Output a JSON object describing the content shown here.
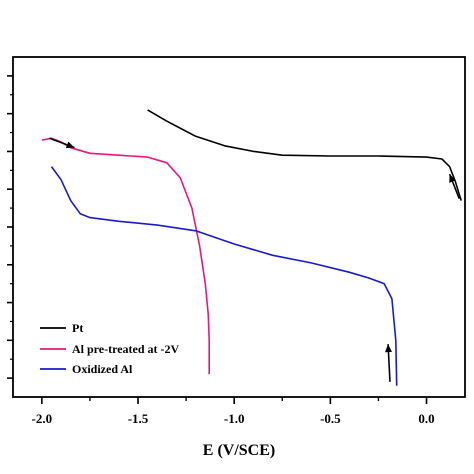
{
  "chart_data": {
    "type": "line",
    "title": "",
    "xlabel": "E (V/SCE)",
    "ylabel": "",
    "xlim": [
      -2.15,
      0.2
    ],
    "ylim": [
      0,
      9
    ],
    "x_ticks": [
      -2.0,
      -1.5,
      -1.0,
      -0.5,
      0.0
    ],
    "x_tick_labels": [
      "-2.0",
      "-1.5",
      "-1.0",
      "-0.5",
      "0.0"
    ],
    "y_tick_labels_visible": false,
    "legend_position": "bottom-left",
    "series": [
      {
        "name": "Pt",
        "color": "#000000",
        "points": [
          [
            -1.45,
            7.6
          ],
          [
            -1.35,
            7.3
          ],
          [
            -1.2,
            6.9
          ],
          [
            -1.05,
            6.65
          ],
          [
            -0.9,
            6.5
          ],
          [
            -0.75,
            6.4
          ],
          [
            -0.5,
            6.38
          ],
          [
            -0.25,
            6.38
          ],
          [
            0.0,
            6.35
          ],
          [
            0.08,
            6.3
          ],
          [
            0.12,
            6.1
          ],
          [
            0.15,
            5.7
          ],
          [
            0.18,
            5.2
          ]
        ]
      },
      {
        "name": "Al pre-treated at -2V",
        "color": "#e8177e",
        "points": [
          [
            -2.0,
            6.8
          ],
          [
            -1.95,
            6.85
          ],
          [
            -1.9,
            6.75
          ],
          [
            -1.85,
            6.6
          ],
          [
            -1.75,
            6.45
          ],
          [
            -1.6,
            6.4
          ],
          [
            -1.45,
            6.35
          ],
          [
            -1.35,
            6.2
          ],
          [
            -1.28,
            5.8
          ],
          [
            -1.22,
            5.0
          ],
          [
            -1.18,
            4.0
          ],
          [
            -1.15,
            3.0
          ],
          [
            -1.135,
            2.2
          ],
          [
            -1.13,
            1.5
          ],
          [
            -1.13,
            0.6
          ]
        ]
      },
      {
        "name": "Oxidized Al",
        "color": "#1a1acd",
        "points": [
          [
            -1.95,
            6.1
          ],
          [
            -1.9,
            5.75
          ],
          [
            -1.85,
            5.2
          ],
          [
            -1.8,
            4.85
          ],
          [
            -1.75,
            4.75
          ],
          [
            -1.6,
            4.65
          ],
          [
            -1.4,
            4.55
          ],
          [
            -1.2,
            4.4
          ],
          [
            -1.0,
            4.05
          ],
          [
            -0.8,
            3.75
          ],
          [
            -0.6,
            3.55
          ],
          [
            -0.4,
            3.3
          ],
          [
            -0.3,
            3.15
          ],
          [
            -0.22,
            3.0
          ],
          [
            -0.18,
            2.6
          ],
          [
            -0.16,
            1.5
          ],
          [
            -0.155,
            0.3
          ]
        ]
      }
    ],
    "annotations": [
      {
        "type": "arrow",
        "from": [
          -1.96,
          6.85
        ],
        "to": [
          -1.83,
          6.6
        ]
      },
      {
        "type": "arrow",
        "from": [
          0.17,
          5.25
        ],
        "to": [
          0.12,
          5.9
        ]
      },
      {
        "type": "arrow",
        "from": [
          -0.19,
          0.4
        ],
        "to": [
          -0.2,
          1.4
        ]
      }
    ]
  },
  "legend": {
    "items": [
      {
        "label": "Pt",
        "color": "#000000"
      },
      {
        "label": "Al pre-treated at -2V",
        "color": "#e8177e"
      },
      {
        "label": "Oxidized Al",
        "color": "#1a1acd"
      }
    ]
  }
}
